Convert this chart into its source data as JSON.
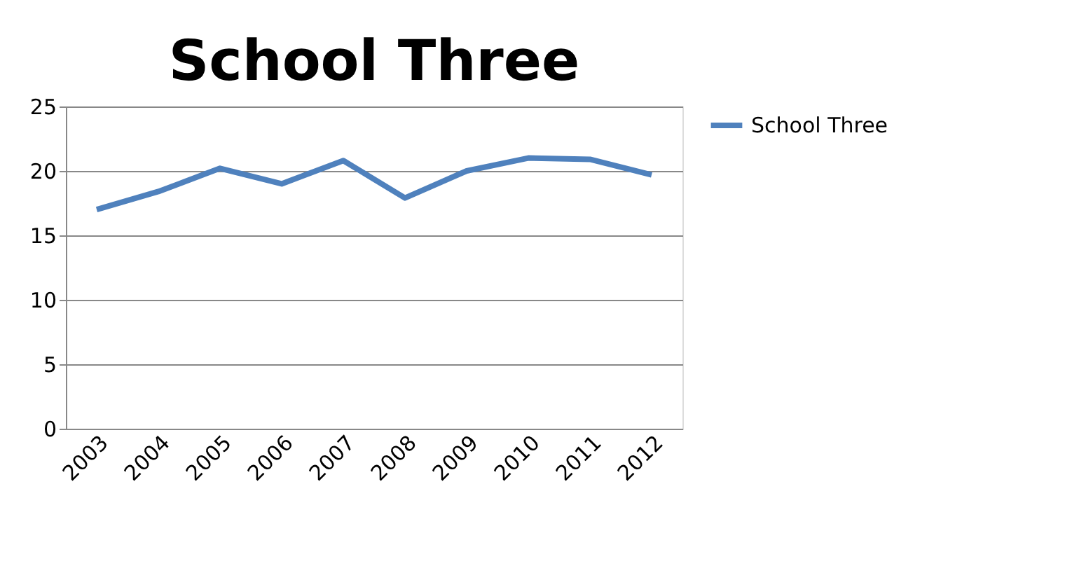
{
  "chart_data": {
    "type": "line",
    "title": "School Three",
    "categories": [
      "2003",
      "2004",
      "2005",
      "2006",
      "2007",
      "2008",
      "2009",
      "2010",
      "2011",
      "2012"
    ],
    "series": [
      {
        "name": "School Three",
        "color": "#4f81bd",
        "values": [
          17.0,
          18.4,
          20.2,
          19.0,
          20.8,
          17.9,
          20.0,
          21.0,
          20.9,
          19.7
        ]
      }
    ],
    "ylim": [
      0,
      25
    ],
    "yticks": [
      0,
      5,
      10,
      15,
      20,
      25
    ],
    "grid": "y",
    "legend": "right",
    "marker": "none",
    "line_style": "solid"
  }
}
